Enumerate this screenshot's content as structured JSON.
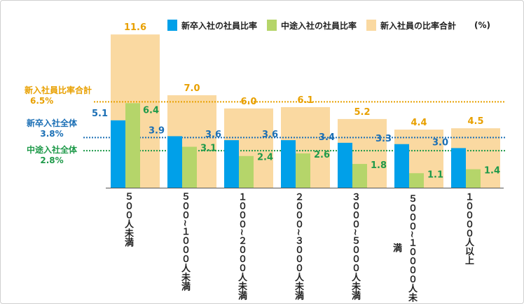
{
  "chart_data": {
    "type": "bar",
    "unit": "(%)",
    "categories": [
      "５００人未満",
      "５００~１０００人未満",
      "１０００~２０００人未満",
      "２０００~３０００人未満",
      "３０００~５０００人未満",
      "５０００~１００００人未満",
      "１００００人以上"
    ],
    "series": [
      {
        "name": "新卒入社の社員比率",
        "color": "#00a0e9",
        "values": [
          5.1,
          3.9,
          3.6,
          3.6,
          3.4,
          3.3,
          3.0
        ]
      },
      {
        "name": "中途入社の社員比率",
        "color": "#b5d56a",
        "values": [
          6.4,
          3.1,
          2.4,
          2.6,
          1.8,
          1.1,
          1.4
        ]
      },
      {
        "name": "新入社員の比率合計",
        "color": "#fad9a1",
        "values": [
          11.6,
          7.0,
          6.0,
          6.1,
          5.2,
          4.4,
          4.5
        ]
      }
    ],
    "reference_lines": [
      {
        "label": "新入社員比率合計",
        "value_text": "6.5%",
        "value": 6.5,
        "color": "#e8a000"
      },
      {
        "label": "新卒入社全体",
        "value_text": "3.8%",
        "value": 3.8,
        "color": "#1b6fb5"
      },
      {
        "label": "中途入社全体",
        "value_text": "2.8%",
        "value": 2.8,
        "color": "#1f9a4a"
      }
    ],
    "ylim": [
      0,
      12.3
    ],
    "value_label_colors": {
      "total": "#e8a000",
      "new": "#1b6fb5",
      "mid": "#1f9a4a"
    }
  }
}
